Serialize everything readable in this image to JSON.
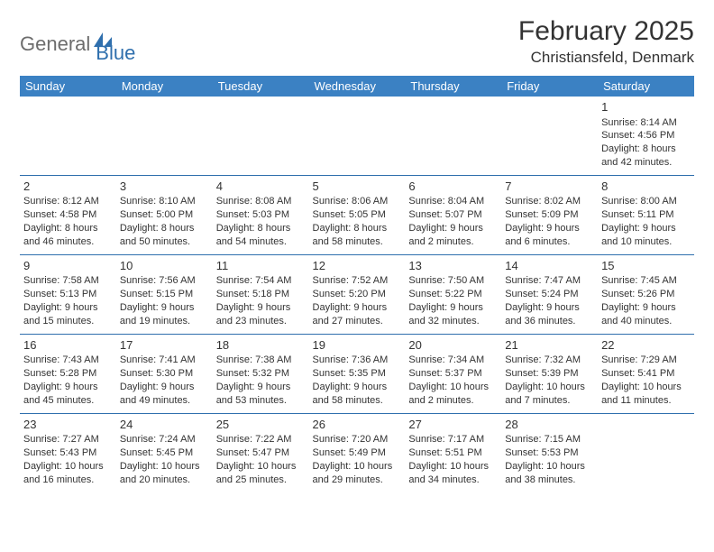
{
  "logo": {
    "part1": "General",
    "part2": "Blue"
  },
  "title": "February 2025",
  "subtitle": "Christiansfeld, Denmark",
  "colors": {
    "header_bg": "#3b81c3",
    "header_text": "#ffffff",
    "row_border": "#2f6fad",
    "text": "#333333",
    "logo_gray": "#6d6d6d",
    "logo_blue": "#2f6fad"
  },
  "daysOfWeek": [
    "Sunday",
    "Monday",
    "Tuesday",
    "Wednesday",
    "Thursday",
    "Friday",
    "Saturday"
  ],
  "weeks": [
    [
      null,
      null,
      null,
      null,
      null,
      null,
      {
        "n": "1",
        "sr": "Sunrise: 8:14 AM",
        "ss": "Sunset: 4:56 PM",
        "d1": "Daylight: 8 hours",
        "d2": "and 42 minutes."
      }
    ],
    [
      {
        "n": "2",
        "sr": "Sunrise: 8:12 AM",
        "ss": "Sunset: 4:58 PM",
        "d1": "Daylight: 8 hours",
        "d2": "and 46 minutes."
      },
      {
        "n": "3",
        "sr": "Sunrise: 8:10 AM",
        "ss": "Sunset: 5:00 PM",
        "d1": "Daylight: 8 hours",
        "d2": "and 50 minutes."
      },
      {
        "n": "4",
        "sr": "Sunrise: 8:08 AM",
        "ss": "Sunset: 5:03 PM",
        "d1": "Daylight: 8 hours",
        "d2": "and 54 minutes."
      },
      {
        "n": "5",
        "sr": "Sunrise: 8:06 AM",
        "ss": "Sunset: 5:05 PM",
        "d1": "Daylight: 8 hours",
        "d2": "and 58 minutes."
      },
      {
        "n": "6",
        "sr": "Sunrise: 8:04 AM",
        "ss": "Sunset: 5:07 PM",
        "d1": "Daylight: 9 hours",
        "d2": "and 2 minutes."
      },
      {
        "n": "7",
        "sr": "Sunrise: 8:02 AM",
        "ss": "Sunset: 5:09 PM",
        "d1": "Daylight: 9 hours",
        "d2": "and 6 minutes."
      },
      {
        "n": "8",
        "sr": "Sunrise: 8:00 AM",
        "ss": "Sunset: 5:11 PM",
        "d1": "Daylight: 9 hours",
        "d2": "and 10 minutes."
      }
    ],
    [
      {
        "n": "9",
        "sr": "Sunrise: 7:58 AM",
        "ss": "Sunset: 5:13 PM",
        "d1": "Daylight: 9 hours",
        "d2": "and 15 minutes."
      },
      {
        "n": "10",
        "sr": "Sunrise: 7:56 AM",
        "ss": "Sunset: 5:15 PM",
        "d1": "Daylight: 9 hours",
        "d2": "and 19 minutes."
      },
      {
        "n": "11",
        "sr": "Sunrise: 7:54 AM",
        "ss": "Sunset: 5:18 PM",
        "d1": "Daylight: 9 hours",
        "d2": "and 23 minutes."
      },
      {
        "n": "12",
        "sr": "Sunrise: 7:52 AM",
        "ss": "Sunset: 5:20 PM",
        "d1": "Daylight: 9 hours",
        "d2": "and 27 minutes."
      },
      {
        "n": "13",
        "sr": "Sunrise: 7:50 AM",
        "ss": "Sunset: 5:22 PM",
        "d1": "Daylight: 9 hours",
        "d2": "and 32 minutes."
      },
      {
        "n": "14",
        "sr": "Sunrise: 7:47 AM",
        "ss": "Sunset: 5:24 PM",
        "d1": "Daylight: 9 hours",
        "d2": "and 36 minutes."
      },
      {
        "n": "15",
        "sr": "Sunrise: 7:45 AM",
        "ss": "Sunset: 5:26 PM",
        "d1": "Daylight: 9 hours",
        "d2": "and 40 minutes."
      }
    ],
    [
      {
        "n": "16",
        "sr": "Sunrise: 7:43 AM",
        "ss": "Sunset: 5:28 PM",
        "d1": "Daylight: 9 hours",
        "d2": "and 45 minutes."
      },
      {
        "n": "17",
        "sr": "Sunrise: 7:41 AM",
        "ss": "Sunset: 5:30 PM",
        "d1": "Daylight: 9 hours",
        "d2": "and 49 minutes."
      },
      {
        "n": "18",
        "sr": "Sunrise: 7:38 AM",
        "ss": "Sunset: 5:32 PM",
        "d1": "Daylight: 9 hours",
        "d2": "and 53 minutes."
      },
      {
        "n": "19",
        "sr": "Sunrise: 7:36 AM",
        "ss": "Sunset: 5:35 PM",
        "d1": "Daylight: 9 hours",
        "d2": "and 58 minutes."
      },
      {
        "n": "20",
        "sr": "Sunrise: 7:34 AM",
        "ss": "Sunset: 5:37 PM",
        "d1": "Daylight: 10 hours",
        "d2": "and 2 minutes."
      },
      {
        "n": "21",
        "sr": "Sunrise: 7:32 AM",
        "ss": "Sunset: 5:39 PM",
        "d1": "Daylight: 10 hours",
        "d2": "and 7 minutes."
      },
      {
        "n": "22",
        "sr": "Sunrise: 7:29 AM",
        "ss": "Sunset: 5:41 PM",
        "d1": "Daylight: 10 hours",
        "d2": "and 11 minutes."
      }
    ],
    [
      {
        "n": "23",
        "sr": "Sunrise: 7:27 AM",
        "ss": "Sunset: 5:43 PM",
        "d1": "Daylight: 10 hours",
        "d2": "and 16 minutes."
      },
      {
        "n": "24",
        "sr": "Sunrise: 7:24 AM",
        "ss": "Sunset: 5:45 PM",
        "d1": "Daylight: 10 hours",
        "d2": "and 20 minutes."
      },
      {
        "n": "25",
        "sr": "Sunrise: 7:22 AM",
        "ss": "Sunset: 5:47 PM",
        "d1": "Daylight: 10 hours",
        "d2": "and 25 minutes."
      },
      {
        "n": "26",
        "sr": "Sunrise: 7:20 AM",
        "ss": "Sunset: 5:49 PM",
        "d1": "Daylight: 10 hours",
        "d2": "and 29 minutes."
      },
      {
        "n": "27",
        "sr": "Sunrise: 7:17 AM",
        "ss": "Sunset: 5:51 PM",
        "d1": "Daylight: 10 hours",
        "d2": "and 34 minutes."
      },
      {
        "n": "28",
        "sr": "Sunrise: 7:15 AM",
        "ss": "Sunset: 5:53 PM",
        "d1": "Daylight: 10 hours",
        "d2": "and 38 minutes."
      },
      null
    ]
  ]
}
